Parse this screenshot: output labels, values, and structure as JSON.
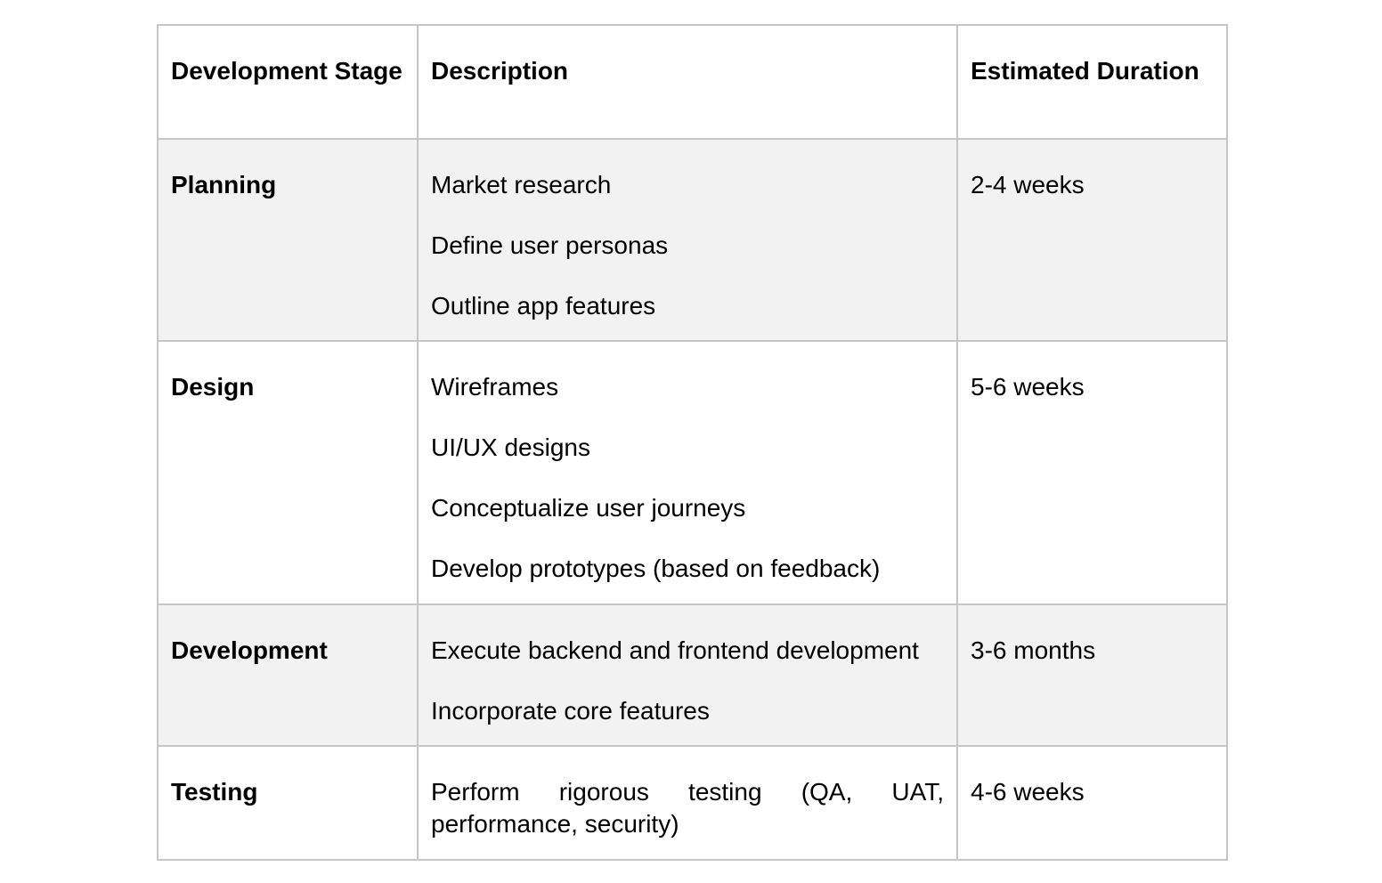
{
  "table": {
    "headers": [
      "Development Stage",
      "Description",
      "Estimated Duration"
    ],
    "rows": [
      {
        "stage": "Planning",
        "items": [
          "Market research",
          "Define user personas",
          "Outline app features"
        ],
        "duration": "2-4 weeks"
      },
      {
        "stage": "Design",
        "items": [
          "Wireframes",
          "UI/UX designs",
          "Conceptualize user journeys",
          "Develop prototypes (based on feedback)"
        ],
        "duration": "5-6 weeks"
      },
      {
        "stage": "Development",
        "items": [
          "Execute backend and frontend development",
          "Incorporate core features"
        ],
        "duration": "3-6 months"
      },
      {
        "stage": "Testing",
        "items": [
          "Perform rigorous testing (QA, UAT, performance, security)"
        ],
        "duration": "4-6 weeks"
      }
    ]
  }
}
